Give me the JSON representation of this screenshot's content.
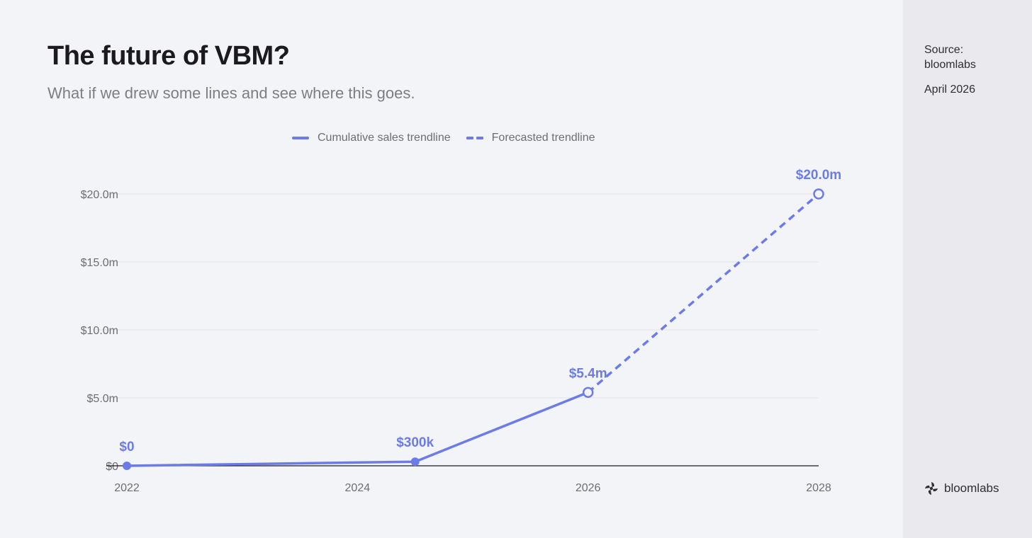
{
  "header": {
    "title": "The future of VBM?",
    "subtitle": "What if we drew some lines and see where this goes."
  },
  "sidebar": {
    "source_label": "Source:",
    "source_name": "bloomlabs",
    "date": "April 2026",
    "brand": "bloomlabs"
  },
  "colors": {
    "accent": "#6b7ce8",
    "axis": "#1b1b1f",
    "grid": "#e3e4ec"
  },
  "chart_data": {
    "type": "line",
    "title": "The future of VBM?",
    "subtitle": "What if we drew some lines and see where this goes.",
    "legend": {
      "placement": "top-center",
      "entries": [
        "Cumulative sales trendline",
        "Forecasted trendline"
      ]
    },
    "x_ticks": [
      "2022",
      "2024",
      "2026",
      "2028"
    ],
    "xlim": [
      2022,
      2028
    ],
    "y_ticks": [
      "$0",
      "$5.0m",
      "$10.0m",
      "$15.0m",
      "$20.0m"
    ],
    "y_tick_values": [
      0,
      5,
      10,
      15,
      20
    ],
    "ylim": [
      0,
      20
    ],
    "ylabel_unit": "$m",
    "grid": true,
    "series": [
      {
        "name": "Cumulative sales trendline",
        "style": "solid",
        "points": [
          {
            "x": 2022,
            "y": 0,
            "label": "$0"
          },
          {
            "x": 2024.5,
            "y": 0.3,
            "label": "$300k"
          },
          {
            "x": 2026,
            "y": 5.4,
            "label": "$5.4m"
          }
        ]
      },
      {
        "name": "Forecasted trendline",
        "style": "dashed",
        "points": [
          {
            "x": 2026,
            "y": 5.4
          },
          {
            "x": 2028,
            "y": 20,
            "label": "$20.0m"
          }
        ]
      }
    ]
  }
}
